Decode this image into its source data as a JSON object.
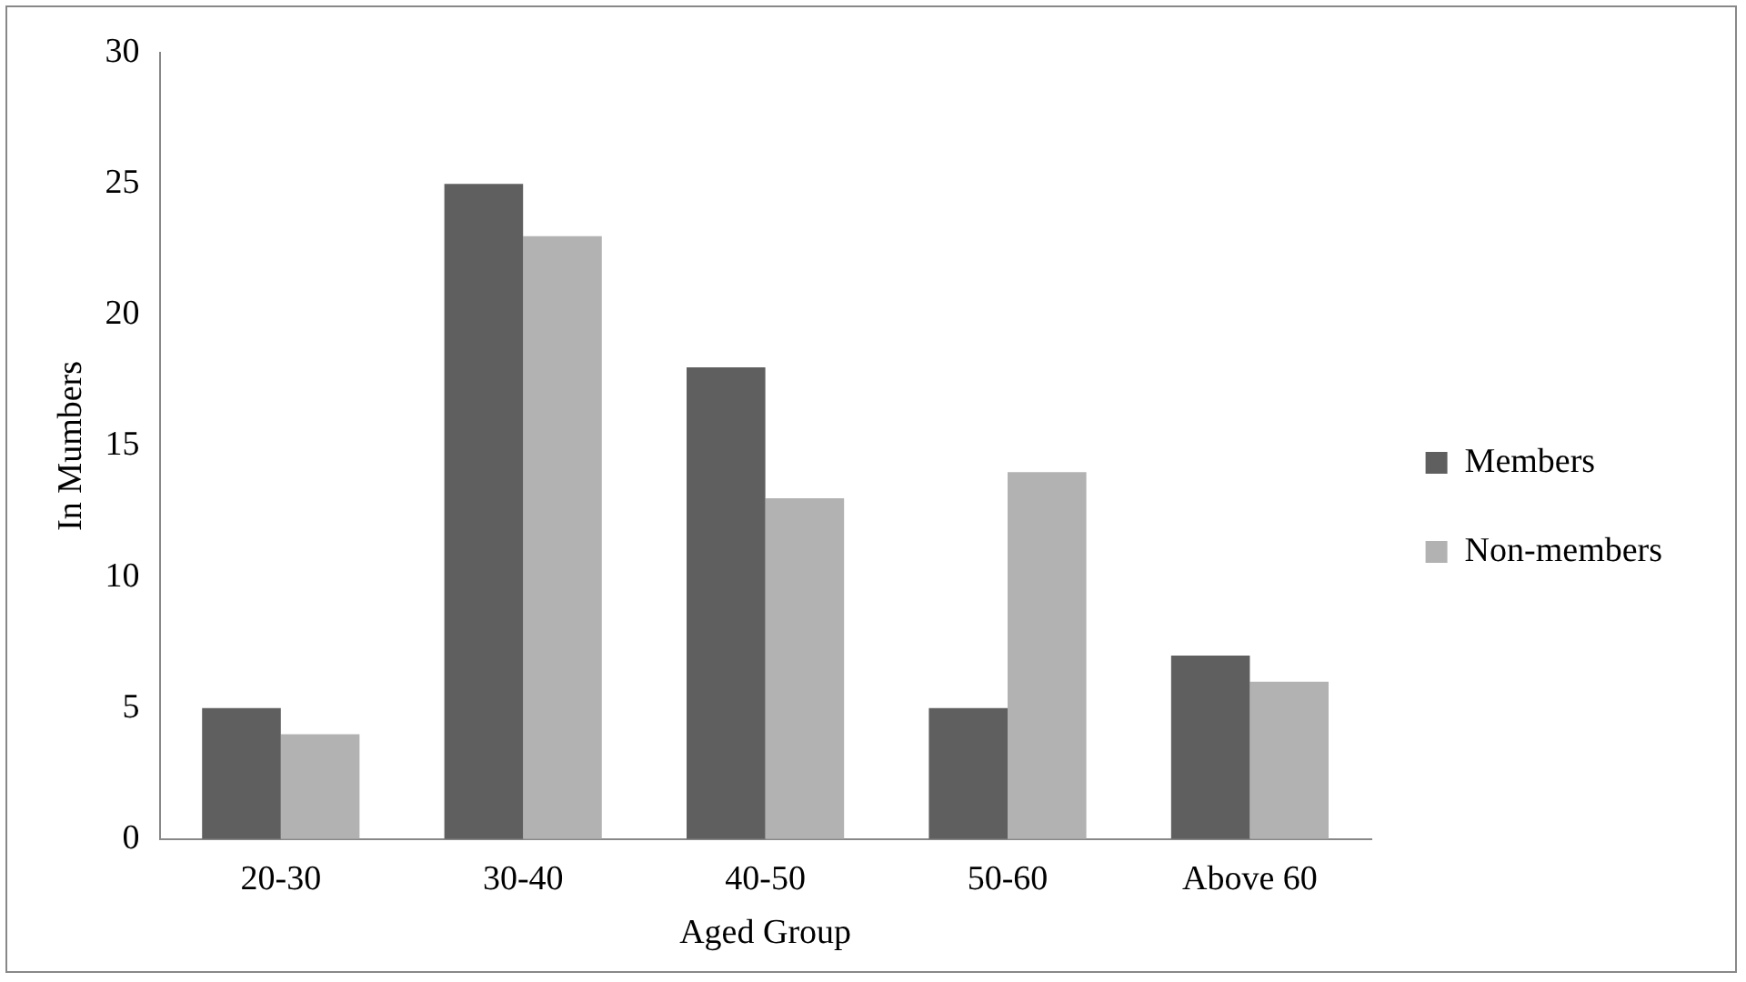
{
  "chart_data": {
    "type": "bar",
    "xlabel": "Aged Group",
    "ylabel": "In Mumbers",
    "categories": [
      "20-30",
      "30-40",
      "40-50",
      "50-60",
      "Above 60"
    ],
    "series": [
      {
        "name": "Members",
        "color": "#5f5f5f",
        "values": [
          5,
          25,
          18,
          5,
          7
        ]
      },
      {
        "name": "Non-members",
        "color": "#b2b2b2",
        "values": [
          4,
          23,
          13,
          14,
          6
        ]
      }
    ],
    "ylim": [
      0,
      30
    ],
    "yticks": [
      0,
      5,
      10,
      15,
      20,
      25,
      30
    ],
    "grid": false,
    "legend": "right"
  }
}
